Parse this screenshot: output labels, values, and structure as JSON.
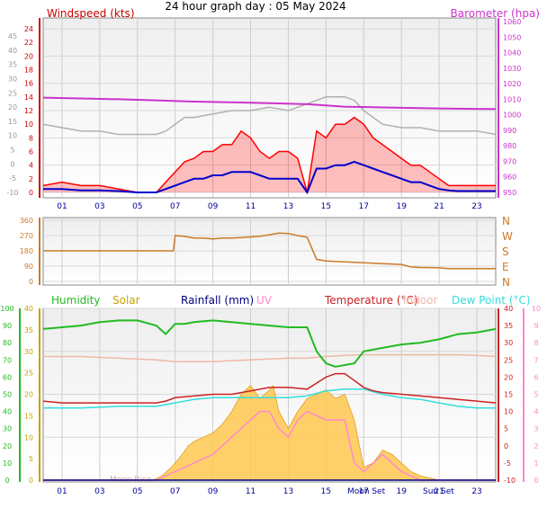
{
  "title": "24 hour graph day : 05 May 2024",
  "colors": {
    "windspeed": "#cc0000",
    "gust_fill": "#ff0000",
    "avg": "#0000cc",
    "barometer": "#cc33cc",
    "gray": "#b0b0b0",
    "direction": "#cc7a29",
    "humidity": "#22bb22",
    "solar": "#c8a000",
    "solar_fill": "#ffc850",
    "rainfall": "#000080",
    "uv": "#ff88cc",
    "temperature": "#cc2222",
    "indoor": "#f0b8a8",
    "dewpoint": "#33dddd",
    "hour_axis": "#000099"
  },
  "chart_data": [
    {
      "type": "line",
      "panel": "wind-barometer",
      "title": "24 hour graph day : 05 May 2024",
      "ylabel": "Windspeed (kts)",
      "y2label": "Barometer (hpa)",
      "x_ticks": [
        "01",
        "03",
        "05",
        "07",
        "09",
        "11",
        "13",
        "15",
        "17",
        "19",
        "21",
        "23"
      ],
      "left_outer_ticks": [
        "45",
        "40",
        "35",
        "30",
        "25",
        "20",
        "15",
        "10",
        "5",
        "0",
        "-5",
        "-10"
      ],
      "left_inner_ticks": [
        "24",
        "22",
        "20",
        "18",
        "16",
        "14",
        "12",
        "10",
        "8",
        "6",
        "4",
        "2",
        "0"
      ],
      "right_ticks": [
        "1060",
        "1050",
        "1040",
        "1030",
        "1020",
        "1010",
        "1000",
        "990",
        "980",
        "970",
        "960",
        "950"
      ],
      "ylim": [
        0,
        25
      ],
      "y2lim": [
        945,
        1060
      ],
      "grid": true,
      "series": [
        {
          "name": "Windspeed (kts)",
          "role": "gust",
          "x": [
            0,
            1,
            2,
            3,
            4,
            5,
            6,
            7,
            7.5,
            8,
            8.5,
            9,
            9.5,
            10,
            10.5,
            11,
            11.5,
            12,
            12.5,
            13,
            13.5,
            14,
            14.5,
            15,
            15.5,
            16,
            16.5,
            17,
            17.5,
            18,
            18.5,
            19,
            19.5,
            20,
            20.5,
            21,
            21.5,
            22,
            23,
            24
          ],
          "values": [
            1,
            1.5,
            1,
            1,
            0.5,
            0,
            0,
            3,
            4.5,
            5,
            6,
            6,
            7,
            7,
            9,
            8,
            6,
            5,
            6,
            6,
            5,
            0,
            9,
            8,
            10,
            10,
            11,
            10,
            8,
            7,
            6,
            5,
            4,
            4,
            3,
            2,
            1,
            1,
            1,
            1
          ]
        },
        {
          "name": "Average",
          "role": "avg",
          "x": [
            0,
            1,
            2,
            3,
            4,
            5,
            6,
            7,
            7.5,
            8,
            8.5,
            9,
            9.5,
            10,
            10.5,
            11,
            11.5,
            12,
            12.5,
            13,
            13.5,
            14,
            14.5,
            15,
            15.5,
            16,
            16.5,
            17,
            17.5,
            18,
            18.5,
            19,
            19.5,
            20,
            20.5,
            21,
            21.5,
            22,
            23,
            24
          ],
          "values": [
            0.5,
            0.5,
            0.3,
            0.3,
            0.2,
            0,
            0,
            1,
            1.5,
            2,
            2,
            2.5,
            2.5,
            3,
            3,
            3,
            2.5,
            2,
            2,
            2,
            2,
            0,
            3.5,
            3.5,
            4,
            4,
            4.5,
            4,
            3.5,
            3,
            2.5,
            2,
            1.5,
            1.5,
            1,
            0.5,
            0.3,
            0.2,
            0.2,
            0.2
          ]
        },
        {
          "name": "Barometer (hpa)",
          "role": "barometer",
          "x": [
            0,
            2,
            4,
            6,
            8,
            10,
            12,
            14,
            15,
            16,
            17,
            18,
            19,
            20,
            21,
            22,
            23,
            24
          ],
          "values": [
            1011,
            1010.5,
            1010,
            1009.3,
            1008.5,
            1008,
            1007.5,
            1006.8,
            1006,
            1005.2,
            1005,
            1004.7,
            1004.5,
            1004.3,
            1004.1,
            1003.9,
            1003.8,
            1003.7
          ]
        },
        {
          "name": "Gray trace",
          "role": "gray",
          "x": [
            0,
            1,
            2,
            3,
            4,
            5,
            6,
            6.5,
            7,
            7.5,
            8,
            9,
            10,
            11,
            12,
            13,
            14,
            14.5,
            15,
            16,
            16.5,
            17,
            17.5,
            18,
            19,
            20,
            21,
            22,
            23,
            24
          ],
          "values": [
            10,
            9.5,
            9,
            9,
            8.5,
            8.5,
            8.5,
            9,
            10,
            11,
            11,
            11.5,
            12,
            12,
            12.5,
            12,
            13,
            13.5,
            14,
            14,
            13.5,
            12,
            11,
            10,
            9.5,
            9.5,
            9,
            9,
            9,
            8.5
          ]
        }
      ]
    },
    {
      "type": "line",
      "panel": "wind-direction",
      "y_ticks": [
        "360",
        "270",
        "180",
        "90",
        "0"
      ],
      "compass_labels": [
        "N",
        "W",
        "S",
        "E",
        "N"
      ],
      "ylim": [
        0,
        360
      ],
      "series": [
        {
          "name": "Wind direction",
          "x": [
            0,
            1,
            2,
            3,
            4,
            5,
            6,
            6.9,
            7,
            7.5,
            8,
            8.5,
            9,
            9.5,
            10,
            10.5,
            11,
            11.5,
            12,
            12.5,
            13,
            13.5,
            14,
            14.5,
            15,
            16,
            17,
            18,
            19,
            19.5,
            20,
            21,
            21.5,
            22,
            23,
            24
          ],
          "values": [
            180,
            180,
            180,
            180,
            180,
            180,
            180,
            180,
            270,
            265,
            255,
            255,
            250,
            255,
            255,
            258,
            262,
            266,
            275,
            285,
            282,
            270,
            260,
            130,
            120,
            115,
            110,
            105,
            100,
            85,
            82,
            80,
            75,
            75,
            75,
            75
          ]
        }
      ]
    },
    {
      "type": "line",
      "panel": "temperature-humidity-solar",
      "legend": [
        "Humidity",
        "Solar",
        "Rainfall (mm)",
        "UV",
        "Temperature (°C)",
        "Indoor",
        "Dew Point (°C)"
      ],
      "x_ticks": [
        "01",
        "03",
        "05",
        "07",
        "09",
        "11",
        "13",
        "15",
        "17",
        "19",
        "21",
        "23"
      ],
      "x_annotations": [
        "Moon Rise",
        "Moon Set",
        "Sun Set"
      ],
      "humidity_ticks": [
        "100",
        "90",
        "80",
        "70",
        "60",
        "50",
        "40",
        "30",
        "20",
        "10",
        "0"
      ],
      "solar_ticks": [
        "40",
        "35",
        "30",
        "25",
        "20",
        "15",
        "10",
        "5",
        "0"
      ],
      "right_temp_ticks": [
        "40",
        "35",
        "30",
        "25",
        "20",
        "15",
        "10",
        "5",
        "0",
        "-5",
        "-10"
      ],
      "uv_ticks": [
        "10",
        "9",
        "8",
        "7",
        "6",
        "5",
        "4",
        "3",
        "2",
        "1",
        "0"
      ],
      "series": [
        {
          "name": "Humidity",
          "x": [
            0,
            1,
            2,
            3,
            4,
            5,
            6,
            6.5,
            7,
            7.5,
            8,
            9,
            10,
            11,
            12,
            13,
            14,
            14.5,
            15,
            15.5,
            16,
            16.5,
            17,
            18,
            19,
            20,
            21,
            22,
            23,
            24
          ],
          "values": [
            88,
            89,
            90,
            92,
            93,
            93,
            90,
            85,
            91,
            91,
            92,
            93,
            92,
            91,
            90,
            89,
            89,
            75,
            68,
            66,
            67,
            68,
            75,
            77,
            79,
            80,
            82,
            85,
            86,
            88
          ]
        },
        {
          "name": "Temperature (°C)",
          "x": [
            0,
            1,
            2,
            3,
            4,
            5,
            6,
            6.5,
            7,
            8,
            9,
            10,
            11,
            12,
            13,
            14,
            15,
            15.5,
            16,
            16.5,
            17,
            17.5,
            18,
            19,
            20,
            21,
            22,
            23,
            24
          ],
          "values": [
            13,
            12.5,
            12.5,
            12.5,
            12.5,
            12.5,
            12.5,
            13,
            14,
            14.5,
            15,
            15,
            16,
            17,
            17,
            16.5,
            20,
            21,
            21,
            19,
            17,
            16,
            15.5,
            15,
            14.5,
            14,
            13.5,
            13,
            12.5
          ]
        },
        {
          "name": "Dew Point (°C)",
          "x": [
            0,
            2,
            4,
            6,
            7,
            8,
            9,
            10,
            11,
            12,
            13,
            14,
            15,
            16,
            17,
            18,
            19,
            20,
            21,
            22,
            23,
            24
          ],
          "values": [
            11,
            11,
            11.5,
            11.5,
            12.5,
            13.5,
            14,
            14,
            14,
            14,
            14,
            14.5,
            16,
            16.5,
            16.5,
            15,
            14,
            13.5,
            12.5,
            11.5,
            11,
            11
          ]
        },
        {
          "name": "Indoor",
          "x": [
            0,
            2,
            4,
            6,
            7,
            8,
            9,
            10,
            11,
            12,
            13,
            14,
            15,
            16,
            17,
            18,
            19,
            20,
            21,
            22,
            23,
            24
          ],
          "values": [
            26,
            26,
            25.5,
            25,
            24.5,
            24.5,
            24.5,
            24.8,
            25,
            25.3,
            25.5,
            25.5,
            26,
            26.3,
            26.5,
            26.5,
            26.5,
            26.5,
            26.5,
            26.5,
            26.3,
            26
          ]
        },
        {
          "name": "Solar",
          "x": [
            0,
            5,
            5.8,
            6.3,
            6.8,
            7.2,
            7.7,
            8,
            8.5,
            9,
            9.5,
            10,
            10.5,
            11,
            11.5,
            12,
            12.2,
            12.5,
            13,
            13.5,
            14,
            14.5,
            15,
            15.5,
            16,
            16.5,
            17,
            17.5,
            18,
            18.5,
            19,
            19.5,
            20,
            21,
            24
          ],
          "values": [
            0,
            0,
            0,
            1,
            3,
            5,
            8,
            9,
            10,
            11,
            13,
            16,
            20,
            22,
            19,
            21,
            22,
            16,
            12,
            16,
            19,
            20,
            21,
            19,
            20,
            14,
            3,
            4,
            7,
            6,
            4,
            2,
            1,
            0,
            0
          ]
        },
        {
          "name": "UV",
          "x": [
            0,
            6,
            7,
            8,
            9,
            10,
            11,
            11.5,
            12,
            12.5,
            13,
            13.5,
            14,
            15,
            16,
            16.5,
            17,
            17.5,
            18,
            18.5,
            19,
            20,
            24
          ],
          "values": [
            0,
            0,
            0.5,
            1,
            1.5,
            2.5,
            3.5,
            4,
            4,
            3,
            2.5,
            3.5,
            4,
            3.5,
            3.5,
            1,
            0.5,
            1,
            1.5,
            1,
            0.5,
            0,
            0
          ]
        },
        {
          "name": "Rainfall (mm)",
          "x": [
            0,
            24
          ],
          "values": [
            0,
            0
          ]
        }
      ]
    }
  ]
}
